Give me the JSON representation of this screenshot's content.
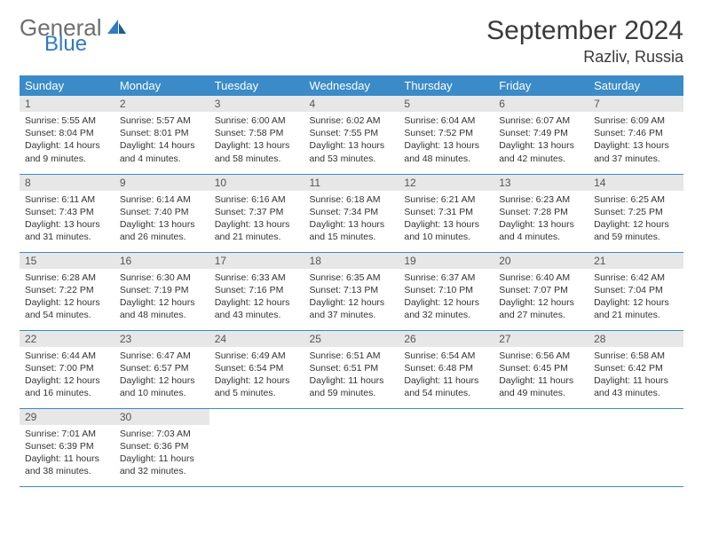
{
  "logo": {
    "general": "General",
    "blue": "Blue"
  },
  "title": "September 2024",
  "location": "Razliv, Russia",
  "colors": {
    "header_bg": "#3b8bc9",
    "header_text": "#ffffff",
    "daynum_bg": "#e7e7e7",
    "row_border": "#3b8bc9",
    "logo_gray": "#6e6e6e",
    "logo_blue": "#2f7bbf",
    "background": "#ffffff"
  },
  "weekdays": [
    "Sunday",
    "Monday",
    "Tuesday",
    "Wednesday",
    "Thursday",
    "Friday",
    "Saturday"
  ],
  "weeks": [
    [
      {
        "n": "1",
        "sr": "Sunrise: 5:55 AM",
        "ss": "Sunset: 8:04 PM",
        "d1": "Daylight: 14 hours",
        "d2": "and 9 minutes."
      },
      {
        "n": "2",
        "sr": "Sunrise: 5:57 AM",
        "ss": "Sunset: 8:01 PM",
        "d1": "Daylight: 14 hours",
        "d2": "and 4 minutes."
      },
      {
        "n": "3",
        "sr": "Sunrise: 6:00 AM",
        "ss": "Sunset: 7:58 PM",
        "d1": "Daylight: 13 hours",
        "d2": "and 58 minutes."
      },
      {
        "n": "4",
        "sr": "Sunrise: 6:02 AM",
        "ss": "Sunset: 7:55 PM",
        "d1": "Daylight: 13 hours",
        "d2": "and 53 minutes."
      },
      {
        "n": "5",
        "sr": "Sunrise: 6:04 AM",
        "ss": "Sunset: 7:52 PM",
        "d1": "Daylight: 13 hours",
        "d2": "and 48 minutes."
      },
      {
        "n": "6",
        "sr": "Sunrise: 6:07 AM",
        "ss": "Sunset: 7:49 PM",
        "d1": "Daylight: 13 hours",
        "d2": "and 42 minutes."
      },
      {
        "n": "7",
        "sr": "Sunrise: 6:09 AM",
        "ss": "Sunset: 7:46 PM",
        "d1": "Daylight: 13 hours",
        "d2": "and 37 minutes."
      }
    ],
    [
      {
        "n": "8",
        "sr": "Sunrise: 6:11 AM",
        "ss": "Sunset: 7:43 PM",
        "d1": "Daylight: 13 hours",
        "d2": "and 31 minutes."
      },
      {
        "n": "9",
        "sr": "Sunrise: 6:14 AM",
        "ss": "Sunset: 7:40 PM",
        "d1": "Daylight: 13 hours",
        "d2": "and 26 minutes."
      },
      {
        "n": "10",
        "sr": "Sunrise: 6:16 AM",
        "ss": "Sunset: 7:37 PM",
        "d1": "Daylight: 13 hours",
        "d2": "and 21 minutes."
      },
      {
        "n": "11",
        "sr": "Sunrise: 6:18 AM",
        "ss": "Sunset: 7:34 PM",
        "d1": "Daylight: 13 hours",
        "d2": "and 15 minutes."
      },
      {
        "n": "12",
        "sr": "Sunrise: 6:21 AM",
        "ss": "Sunset: 7:31 PM",
        "d1": "Daylight: 13 hours",
        "d2": "and 10 minutes."
      },
      {
        "n": "13",
        "sr": "Sunrise: 6:23 AM",
        "ss": "Sunset: 7:28 PM",
        "d1": "Daylight: 13 hours",
        "d2": "and 4 minutes."
      },
      {
        "n": "14",
        "sr": "Sunrise: 6:25 AM",
        "ss": "Sunset: 7:25 PM",
        "d1": "Daylight: 12 hours",
        "d2": "and 59 minutes."
      }
    ],
    [
      {
        "n": "15",
        "sr": "Sunrise: 6:28 AM",
        "ss": "Sunset: 7:22 PM",
        "d1": "Daylight: 12 hours",
        "d2": "and 54 minutes."
      },
      {
        "n": "16",
        "sr": "Sunrise: 6:30 AM",
        "ss": "Sunset: 7:19 PM",
        "d1": "Daylight: 12 hours",
        "d2": "and 48 minutes."
      },
      {
        "n": "17",
        "sr": "Sunrise: 6:33 AM",
        "ss": "Sunset: 7:16 PM",
        "d1": "Daylight: 12 hours",
        "d2": "and 43 minutes."
      },
      {
        "n": "18",
        "sr": "Sunrise: 6:35 AM",
        "ss": "Sunset: 7:13 PM",
        "d1": "Daylight: 12 hours",
        "d2": "and 37 minutes."
      },
      {
        "n": "19",
        "sr": "Sunrise: 6:37 AM",
        "ss": "Sunset: 7:10 PM",
        "d1": "Daylight: 12 hours",
        "d2": "and 32 minutes."
      },
      {
        "n": "20",
        "sr": "Sunrise: 6:40 AM",
        "ss": "Sunset: 7:07 PM",
        "d1": "Daylight: 12 hours",
        "d2": "and 27 minutes."
      },
      {
        "n": "21",
        "sr": "Sunrise: 6:42 AM",
        "ss": "Sunset: 7:04 PM",
        "d1": "Daylight: 12 hours",
        "d2": "and 21 minutes."
      }
    ],
    [
      {
        "n": "22",
        "sr": "Sunrise: 6:44 AM",
        "ss": "Sunset: 7:00 PM",
        "d1": "Daylight: 12 hours",
        "d2": "and 16 minutes."
      },
      {
        "n": "23",
        "sr": "Sunrise: 6:47 AM",
        "ss": "Sunset: 6:57 PM",
        "d1": "Daylight: 12 hours",
        "d2": "and 10 minutes."
      },
      {
        "n": "24",
        "sr": "Sunrise: 6:49 AM",
        "ss": "Sunset: 6:54 PM",
        "d1": "Daylight: 12 hours",
        "d2": "and 5 minutes."
      },
      {
        "n": "25",
        "sr": "Sunrise: 6:51 AM",
        "ss": "Sunset: 6:51 PM",
        "d1": "Daylight: 11 hours",
        "d2": "and 59 minutes."
      },
      {
        "n": "26",
        "sr": "Sunrise: 6:54 AM",
        "ss": "Sunset: 6:48 PM",
        "d1": "Daylight: 11 hours",
        "d2": "and 54 minutes."
      },
      {
        "n": "27",
        "sr": "Sunrise: 6:56 AM",
        "ss": "Sunset: 6:45 PM",
        "d1": "Daylight: 11 hours",
        "d2": "and 49 minutes."
      },
      {
        "n": "28",
        "sr": "Sunrise: 6:58 AM",
        "ss": "Sunset: 6:42 PM",
        "d1": "Daylight: 11 hours",
        "d2": "and 43 minutes."
      }
    ],
    [
      {
        "n": "29",
        "sr": "Sunrise: 7:01 AM",
        "ss": "Sunset: 6:39 PM",
        "d1": "Daylight: 11 hours",
        "d2": "and 38 minutes."
      },
      {
        "n": "30",
        "sr": "Sunrise: 7:03 AM",
        "ss": "Sunset: 6:36 PM",
        "d1": "Daylight: 11 hours",
        "d2": "and 32 minutes."
      },
      null,
      null,
      null,
      null,
      null
    ]
  ]
}
